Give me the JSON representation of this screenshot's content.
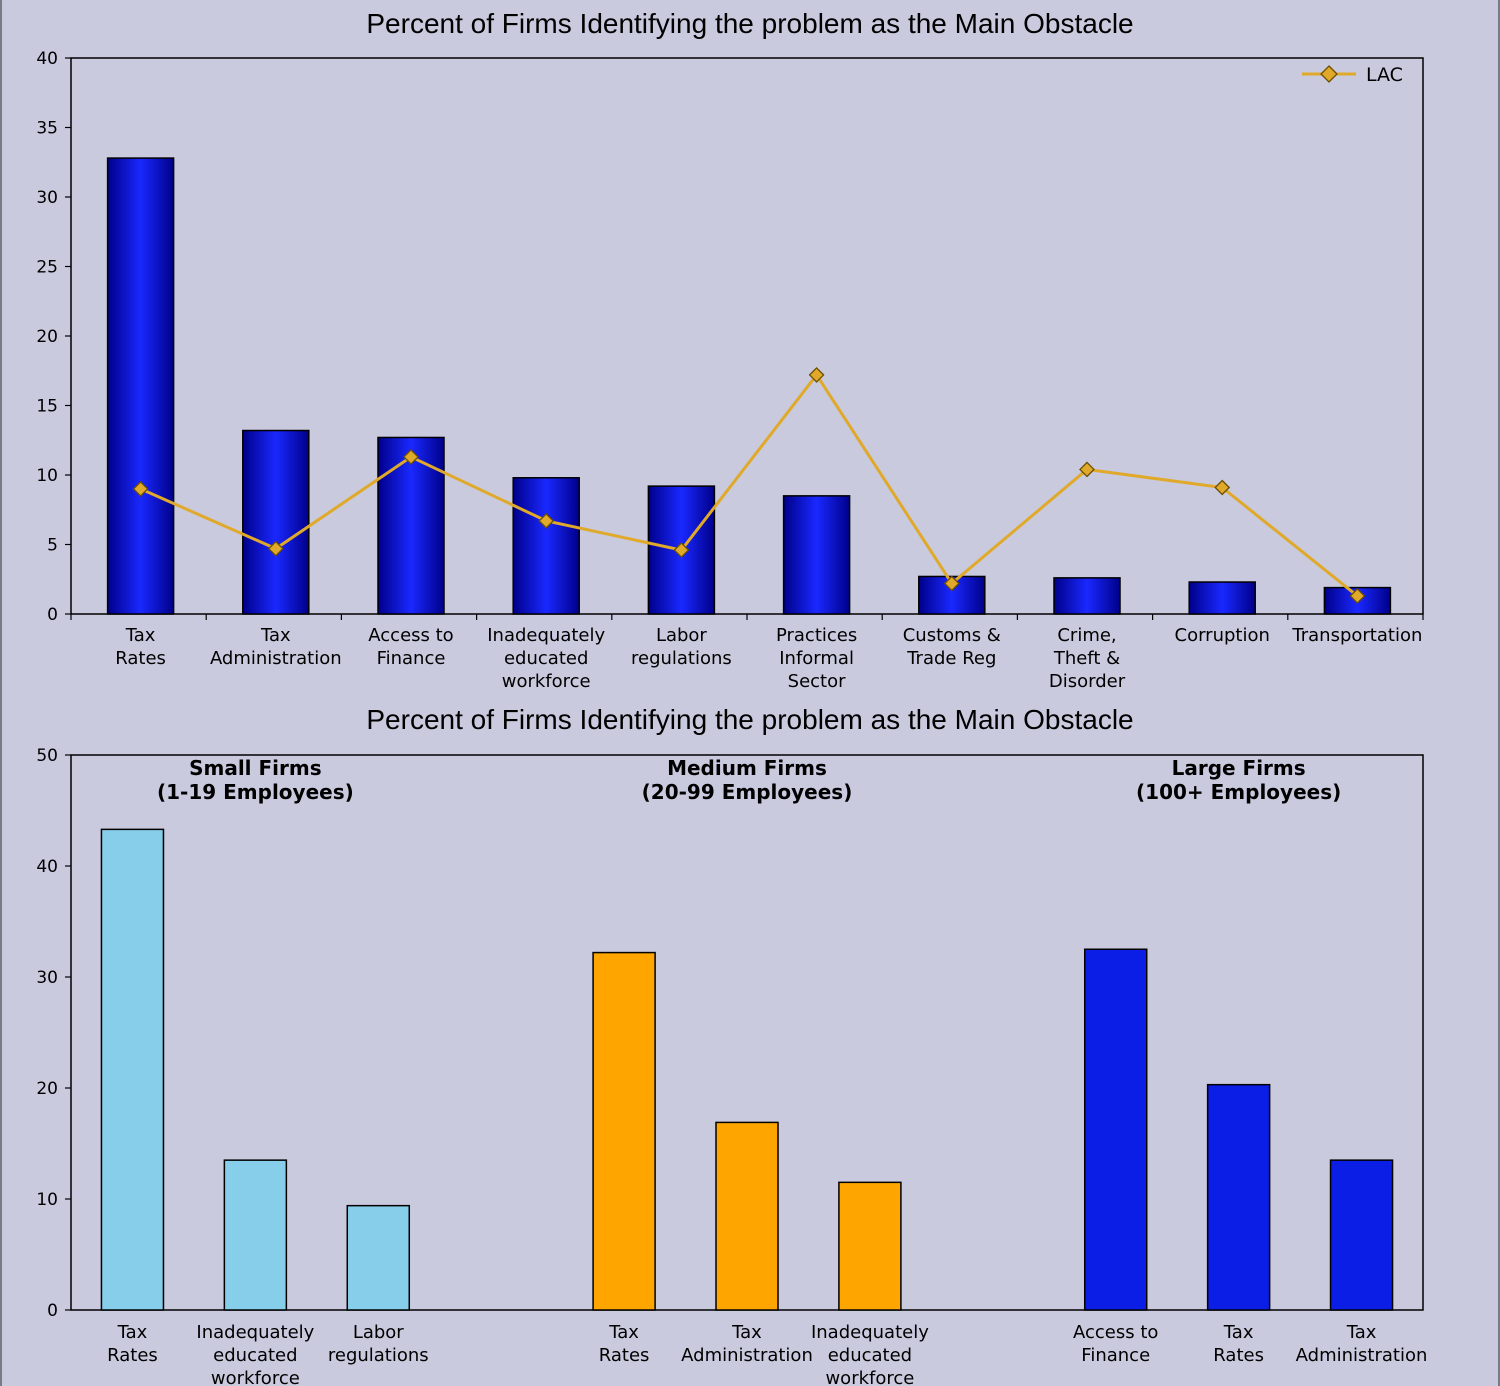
{
  "chart_data": [
    {
      "type": "bar",
      "title": "Percent of Firms Identifying the problem as the Main Obstacle",
      "categories": [
        [
          "Tax",
          "Rates"
        ],
        [
          "Tax",
          "Administration"
        ],
        [
          "Access to",
          "Finance"
        ],
        [
          "Inadequately",
          "educated",
          "workforce"
        ],
        [
          "Labor",
          "regulations"
        ],
        [
          "Practices",
          "Informal",
          "Sector"
        ],
        [
          "Customs &",
          "Trade Reg"
        ],
        [
          "Crime,",
          "Theft &",
          "Disorder"
        ],
        [
          "Corruption"
        ],
        [
          "Transportation"
        ]
      ],
      "series": [
        {
          "kind": "bar",
          "color": "#0a14c8",
          "values": [
            32.8,
            13.2,
            12.7,
            9.8,
            9.2,
            8.5,
            2.7,
            2.6,
            2.3,
            1.9
          ]
        },
        {
          "name": "LAC",
          "kind": "line",
          "color": "#e0a92a",
          "marker": "diamond",
          "values": [
            9.0,
            4.7,
            11.3,
            6.7,
            4.6,
            17.2,
            2.2,
            10.4,
            9.1,
            1.3
          ]
        }
      ],
      "ylim": [
        0,
        40
      ],
      "yticks": [
        "0",
        "5",
        "10",
        "15",
        "20",
        "25",
        "30",
        "35",
        "40"
      ],
      "legend": "top-right",
      "grid": false
    },
    {
      "type": "bar",
      "title": "Percent of Firms Identifying the problem as the Main Obstacle",
      "ylim": [
        0,
        50
      ],
      "yticks": [
        "0",
        "10",
        "20",
        "30",
        "40",
        "50"
      ],
      "grid": false,
      "groups": [
        {
          "label": [
            "Small Firms",
            "(1-19 Employees)"
          ],
          "color": "#87ceeb",
          "categories": [
            [
              "Tax",
              "Rates"
            ],
            [
              "Inadequately",
              "educated",
              "workforce"
            ],
            [
              "Labor",
              "regulations"
            ]
          ],
          "values": [
            43.3,
            13.5,
            9.4
          ]
        },
        {
          "label": [
            "Medium Firms",
            "(20-99 Employees)"
          ],
          "color": "#ffa500",
          "categories": [
            [
              "Tax",
              "Rates"
            ],
            [
              "Tax",
              "Administration"
            ],
            [
              "Inadequately",
              "educated",
              "workforce"
            ]
          ],
          "values": [
            32.2,
            16.9,
            11.5
          ]
        },
        {
          "label": [
            "Large Firms",
            "(100+ Employees)"
          ],
          "color": "#0a1ee6",
          "categories": [
            [
              "Access to",
              "Finance"
            ],
            [
              "Tax",
              "Rates"
            ],
            [
              "Tax",
              "Administration"
            ]
          ],
          "values": [
            32.5,
            20.3,
            13.5
          ]
        }
      ]
    }
  ]
}
